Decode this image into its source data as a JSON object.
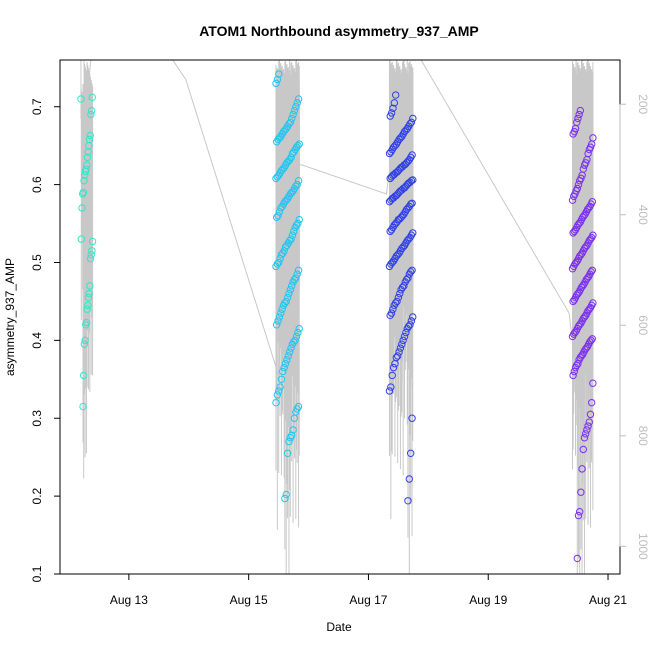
{
  "chart_data": {
    "type": "scatter",
    "title": "ATOM1 Northbound asymmetry_937_AMP",
    "xlabel": "Date",
    "ylabel": "asymmetry_937_AMP",
    "x_ticks": [
      "Aug 13",
      "Aug 15",
      "Aug 17",
      "Aug 19",
      "Aug 21"
    ],
    "x_tick_values": [
      13,
      15,
      17,
      19,
      21
    ],
    "xlim": [
      11.85,
      21.2
    ],
    "y_ticks": [
      0.1,
      0.2,
      0.3,
      0.4,
      0.5,
      0.6,
      0.7
    ],
    "ylim": [
      0.1,
      0.76
    ],
    "y2_ticks": [
      200,
      400,
      600,
      800,
      1000
    ],
    "y2lim": [
      1050,
      120
    ],
    "grid": false,
    "legend": "none",
    "series": [
      {
        "color": "#33e6c9",
        "x_range": [
          12.2,
          12.4
        ],
        "values": [
          0.71,
          0.712,
          0.695,
          0.69,
          0.663,
          0.658,
          0.65,
          0.642,
          0.635,
          0.625,
          0.62,
          0.617,
          0.612,
          0.605,
          0.59,
          0.588,
          0.57,
          0.53,
          0.527,
          0.515,
          0.51,
          0.505,
          0.47,
          0.46,
          0.455,
          0.445,
          0.44,
          0.423,
          0.42,
          0.4,
          0.395,
          0.355,
          0.315
        ]
      },
      {
        "color": "#1ec6f2",
        "x_range": [
          15.45,
          15.85
        ],
        "values": [
          0.742,
          0.735,
          0.73,
          0.71,
          0.705,
          0.7,
          0.695,
          0.69,
          0.685,
          0.68,
          0.678,
          0.675,
          0.672,
          0.67,
          0.668,
          0.665,
          0.662,
          0.66,
          0.658,
          0.655,
          0.652,
          0.65,
          0.648,
          0.645,
          0.642,
          0.64,
          0.635,
          0.632,
          0.63,
          0.628,
          0.625,
          0.622,
          0.62,
          0.618,
          0.615,
          0.612,
          0.61,
          0.608,
          0.605,
          0.6,
          0.598,
          0.595,
          0.592,
          0.59,
          0.588,
          0.585,
          0.582,
          0.58,
          0.578,
          0.575,
          0.572,
          0.57,
          0.565,
          0.56,
          0.558,
          0.555,
          0.55,
          0.548,
          0.545,
          0.54,
          0.535,
          0.53,
          0.528,
          0.525,
          0.522,
          0.52,
          0.515,
          0.512,
          0.51,
          0.505,
          0.5,
          0.498,
          0.495,
          0.49,
          0.485,
          0.48,
          0.478,
          0.475,
          0.47,
          0.465,
          0.46,
          0.455,
          0.45,
          0.448,
          0.445,
          0.44,
          0.435,
          0.43,
          0.425,
          0.42,
          0.415,
          0.41,
          0.405,
          0.4,
          0.398,
          0.395,
          0.39,
          0.385,
          0.38,
          0.375,
          0.37,
          0.365,
          0.36,
          0.35,
          0.34,
          0.335,
          0.33,
          0.32,
          0.315,
          0.312,
          0.308,
          0.3,
          0.285,
          0.278,
          0.275,
          0.27,
          0.255,
          0.202,
          0.197
        ]
      },
      {
        "color": "#2f3fe8",
        "x_range": [
          17.35,
          17.75
        ],
        "values": [
          0.715,
          0.705,
          0.698,
          0.692,
          0.688,
          0.685,
          0.68,
          0.678,
          0.675,
          0.672,
          0.67,
          0.668,
          0.665,
          0.662,
          0.66,
          0.658,
          0.655,
          0.652,
          0.65,
          0.648,
          0.645,
          0.642,
          0.64,
          0.638,
          0.635,
          0.632,
          0.63,
          0.628,
          0.626,
          0.625,
          0.623,
          0.622,
          0.62,
          0.618,
          0.616,
          0.615,
          0.613,
          0.612,
          0.61,
          0.608,
          0.606,
          0.605,
          0.603,
          0.602,
          0.6,
          0.598,
          0.596,
          0.595,
          0.593,
          0.592,
          0.59,
          0.588,
          0.586,
          0.585,
          0.583,
          0.582,
          0.58,
          0.578,
          0.576,
          0.575,
          0.572,
          0.57,
          0.568,
          0.565,
          0.562,
          0.56,
          0.558,
          0.556,
          0.555,
          0.552,
          0.55,
          0.548,
          0.545,
          0.542,
          0.54,
          0.538,
          0.535,
          0.532,
          0.53,
          0.528,
          0.525,
          0.522,
          0.52,
          0.518,
          0.515,
          0.512,
          0.51,
          0.508,
          0.505,
          0.502,
          0.5,
          0.498,
          0.495,
          0.49,
          0.488,
          0.485,
          0.48,
          0.478,
          0.475,
          0.47,
          0.468,
          0.465,
          0.46,
          0.455,
          0.45,
          0.448,
          0.445,
          0.44,
          0.435,
          0.432,
          0.43,
          0.425,
          0.42,
          0.418,
          0.415,
          0.41,
          0.405,
          0.4,
          0.395,
          0.39,
          0.385,
          0.38,
          0.378,
          0.37,
          0.365,
          0.355,
          0.34,
          0.335,
          0.3,
          0.255,
          0.222,
          0.194
        ]
      },
      {
        "color": "#7b2ff0",
        "x_range": [
          20.4,
          20.75
        ],
        "values": [
          0.695,
          0.69,
          0.685,
          0.68,
          0.672,
          0.668,
          0.665,
          0.66,
          0.652,
          0.648,
          0.645,
          0.64,
          0.632,
          0.628,
          0.625,
          0.62,
          0.612,
          0.608,
          0.605,
          0.6,
          0.595,
          0.592,
          0.588,
          0.585,
          0.58,
          0.578,
          0.575,
          0.572,
          0.57,
          0.568,
          0.565,
          0.562,
          0.56,
          0.558,
          0.555,
          0.552,
          0.55,
          0.548,
          0.545,
          0.542,
          0.54,
          0.538,
          0.535,
          0.532,
          0.53,
          0.528,
          0.525,
          0.522,
          0.52,
          0.518,
          0.515,
          0.512,
          0.51,
          0.508,
          0.505,
          0.502,
          0.5,
          0.498,
          0.495,
          0.492,
          0.49,
          0.488,
          0.485,
          0.482,
          0.48,
          0.478,
          0.475,
          0.472,
          0.47,
          0.468,
          0.465,
          0.462,
          0.46,
          0.458,
          0.455,
          0.452,
          0.45,
          0.448,
          0.445,
          0.442,
          0.44,
          0.438,
          0.435,
          0.432,
          0.43,
          0.428,
          0.425,
          0.422,
          0.42,
          0.418,
          0.415,
          0.412,
          0.41,
          0.408,
          0.405,
          0.402,
          0.4,
          0.398,
          0.395,
          0.392,
          0.39,
          0.388,
          0.385,
          0.382,
          0.38,
          0.378,
          0.375,
          0.37,
          0.368,
          0.365,
          0.36,
          0.355,
          0.345,
          0.32,
          0.305,
          0.295,
          0.29,
          0.285,
          0.28,
          0.275,
          0.26,
          0.235,
          0.205,
          0.18,
          0.175,
          0.12
        ]
      }
    ],
    "overlay_line": {
      "color": "#c8c8c8",
      "points": [
        [
          12.3,
          0.712
        ],
        [
          12.55,
          0.895
        ],
        [
          13.95,
          0.735
        ],
        [
          15.5,
          0.355
        ],
        [
          15.55,
          0.63
        ],
        [
          15.9,
          0.625
        ],
        [
          17.3,
          0.588
        ],
        [
          17.65,
          0.79
        ],
        [
          20.35,
          0.435
        ],
        [
          20.45,
          0.37
        ]
      ]
    },
    "secondary_axis_color": "#bdbdbd"
  }
}
